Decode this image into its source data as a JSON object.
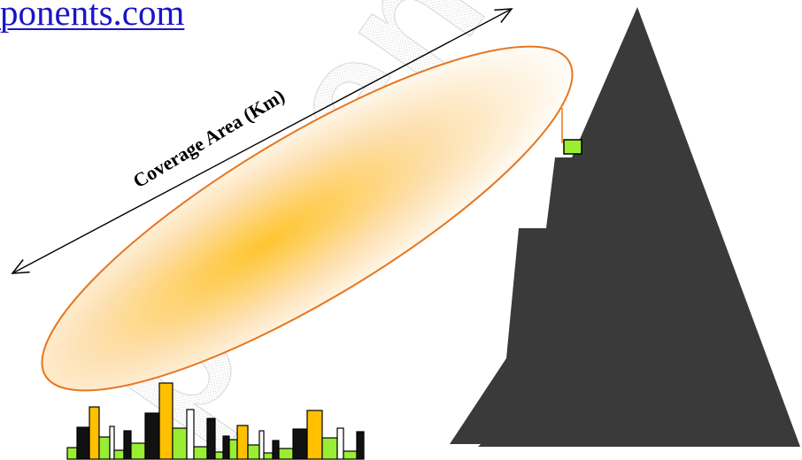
{
  "header": {
    "url_text": "ponents.com"
  },
  "watermark": {
    "text": "ponents"
  },
  "coverage": {
    "label": "Coverage Area (Km)"
  },
  "colors": {
    "mountain": "#3a3a3a",
    "ellipse_stroke": "#e8761e",
    "ellipse_fill_center": "#ffc52e",
    "antenna_box": "#99ee33",
    "link": "#1a14c8",
    "building_black": "#111111",
    "building_yellow": "#ffc000",
    "building_green": "#99ee33",
    "building_white": "#ffffff"
  }
}
